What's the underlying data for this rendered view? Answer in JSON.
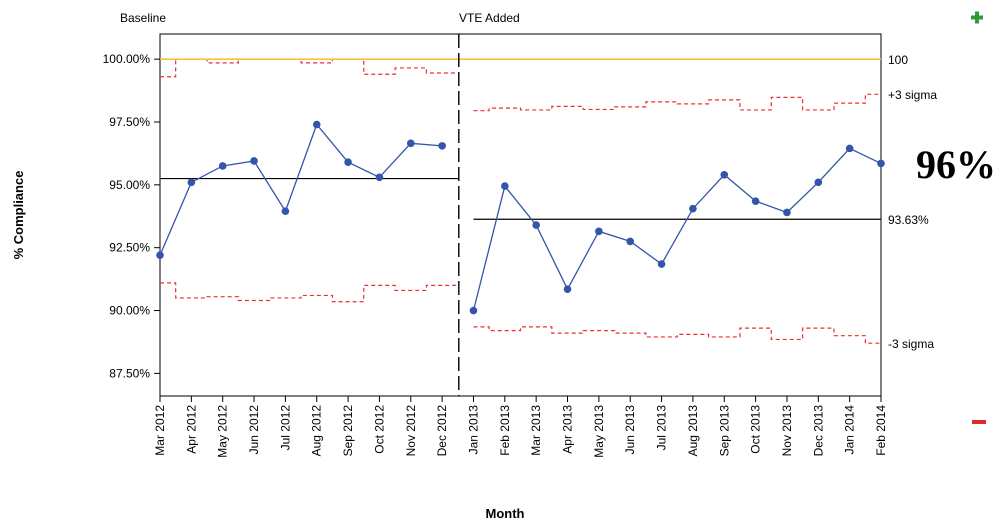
{
  "colors": {
    "series": "#3355aa",
    "target": "#f5c242",
    "limits": "#e83030",
    "mean": "#000000",
    "plus": "#2e9b3a",
    "minus": "#e02a2a"
  },
  "icons": {
    "plus": "plus-icon",
    "minus": "minus-icon"
  },
  "chart_data": {
    "type": "line",
    "title": "",
    "xlabel": "Month",
    "ylabel": "% Compliance",
    "ylim": [
      86.6,
      101.0
    ],
    "yticks": [
      "87.50%",
      "90.00%",
      "92.50%",
      "95.00%",
      "97.50%",
      "100.00%"
    ],
    "ytick_values": [
      87.5,
      90.0,
      92.5,
      95.0,
      97.5,
      100.0
    ],
    "grid": false,
    "categories": [
      "Mar 2012",
      "Apr 2012",
      "May 2012",
      "Jun 2012",
      "Jul 2012",
      "Aug 2012",
      "Sep 2012",
      "Oct 2012",
      "Nov 2012",
      "Dec 2012",
      "Jan 2013",
      "Feb 2013",
      "Mar 2013",
      "Apr 2013",
      "May 2013",
      "Jun 2013",
      "Jul 2013",
      "Aug 2013",
      "Sep 2013",
      "Oct 2013",
      "Nov 2013",
      "Dec 2013",
      "Jan 2014",
      "Feb 2014"
    ],
    "segments": [
      {
        "label": "Baseline",
        "start": 0,
        "end": 9,
        "values": [
          92.2,
          95.1,
          95.75,
          95.95,
          93.95,
          97.4,
          95.9,
          95.3,
          96.65,
          96.55
        ],
        "mean": 95.25,
        "ucl": [
          99.3,
          100.0,
          99.85,
          100.0,
          100.0,
          99.85,
          100.0,
          99.4,
          99.65,
          99.45
        ],
        "lcl": [
          91.1,
          90.5,
          90.55,
          90.4,
          90.5,
          90.6,
          90.35,
          91.0,
          90.8,
          91.0
        ]
      },
      {
        "label": "VTE Added",
        "start": 10,
        "end": 23,
        "values": [
          90.0,
          94.95,
          93.4,
          90.85,
          93.15,
          92.75,
          91.85,
          94.05,
          95.4,
          94.35,
          93.9,
          95.1,
          96.45,
          95.85
        ],
        "mean": 93.63,
        "ucl": [
          97.95,
          98.05,
          97.98,
          98.12,
          98.0,
          98.1,
          98.3,
          98.22,
          98.38,
          97.98,
          98.48,
          97.98,
          98.25,
          98.6
        ],
        "lcl": [
          89.35,
          89.2,
          89.35,
          89.1,
          89.2,
          89.1,
          88.95,
          89.05,
          88.95,
          89.3,
          88.85,
          89.3,
          89.0,
          88.7
        ]
      }
    ],
    "target": 100,
    "annotations": {
      "target_label": "100",
      "ucl_label": "+3 sigma",
      "mean_label": "93.63%",
      "lcl_label": "-3 sigma",
      "current_value": "96%"
    }
  }
}
